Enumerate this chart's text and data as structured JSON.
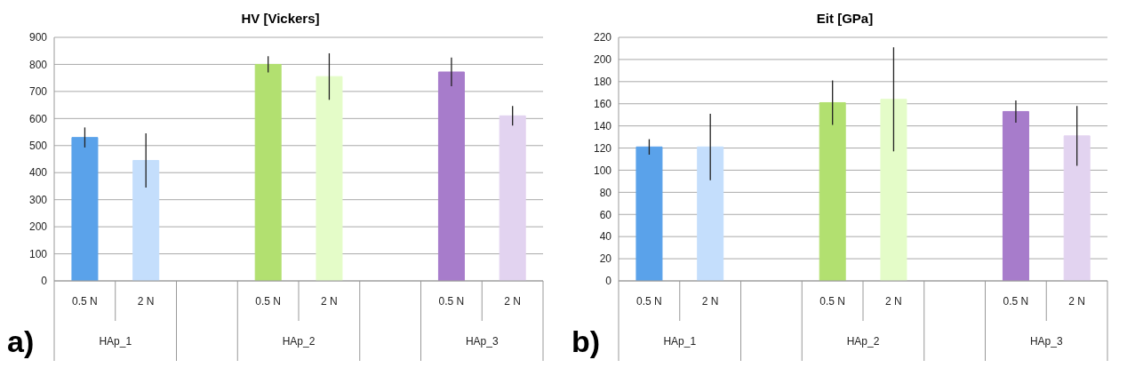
{
  "chart_data": [
    {
      "type": "bar",
      "title": "HV [Vickers]",
      "categories": [
        "0.5 N",
        "2 N",
        null,
        "0.5 N",
        "2 N",
        null,
        "0.5 N",
        "2 N"
      ],
      "values": [
        530,
        445,
        null,
        800,
        755,
        null,
        772,
        610
      ],
      "errors": [
        37,
        100,
        null,
        30,
        86,
        null,
        53,
        36
      ],
      "colors": [
        "#5aa2ea",
        "#c4defc",
        "#000000",
        "#b2e070",
        "#e4fcc8",
        "#000000",
        "#a77ccb",
        "#e2d3f0"
      ],
      "ylim": [
        0,
        900
      ],
      "yticks": [
        0,
        100,
        200,
        300,
        400,
        500,
        600,
        700,
        800,
        900
      ],
      "grid": "y",
      "annotations": [
        "HAp_1",
        "HAp_2",
        "HAp_3",
        "a)"
      ]
    },
    {
      "type": "bar",
      "title": "Eit [GPa]",
      "categories": [
        "0.5 N",
        "2 N",
        null,
        "0.5 N",
        "2 N",
        null,
        "0.5 N",
        "2 N"
      ],
      "values": [
        121,
        121,
        null,
        161,
        164,
        null,
        153,
        131
      ],
      "errors": [
        7,
        30,
        null,
        20,
        47,
        null,
        10,
        27
      ],
      "colors": [
        "#5aa2ea",
        "#c4defc",
        "#000000",
        "#b2e070",
        "#e4fcc8",
        "#000000",
        "#a77ccb",
        "#e2d3f0"
      ],
      "ylim": [
        0,
        220
      ],
      "yticks": [
        0,
        20,
        40,
        60,
        80,
        100,
        120,
        140,
        160,
        180,
        200,
        220
      ],
      "grid": "y",
      "annotations": [
        "HAp_1",
        "HAp_2",
        "HAp_3",
        "b)"
      ]
    }
  ]
}
